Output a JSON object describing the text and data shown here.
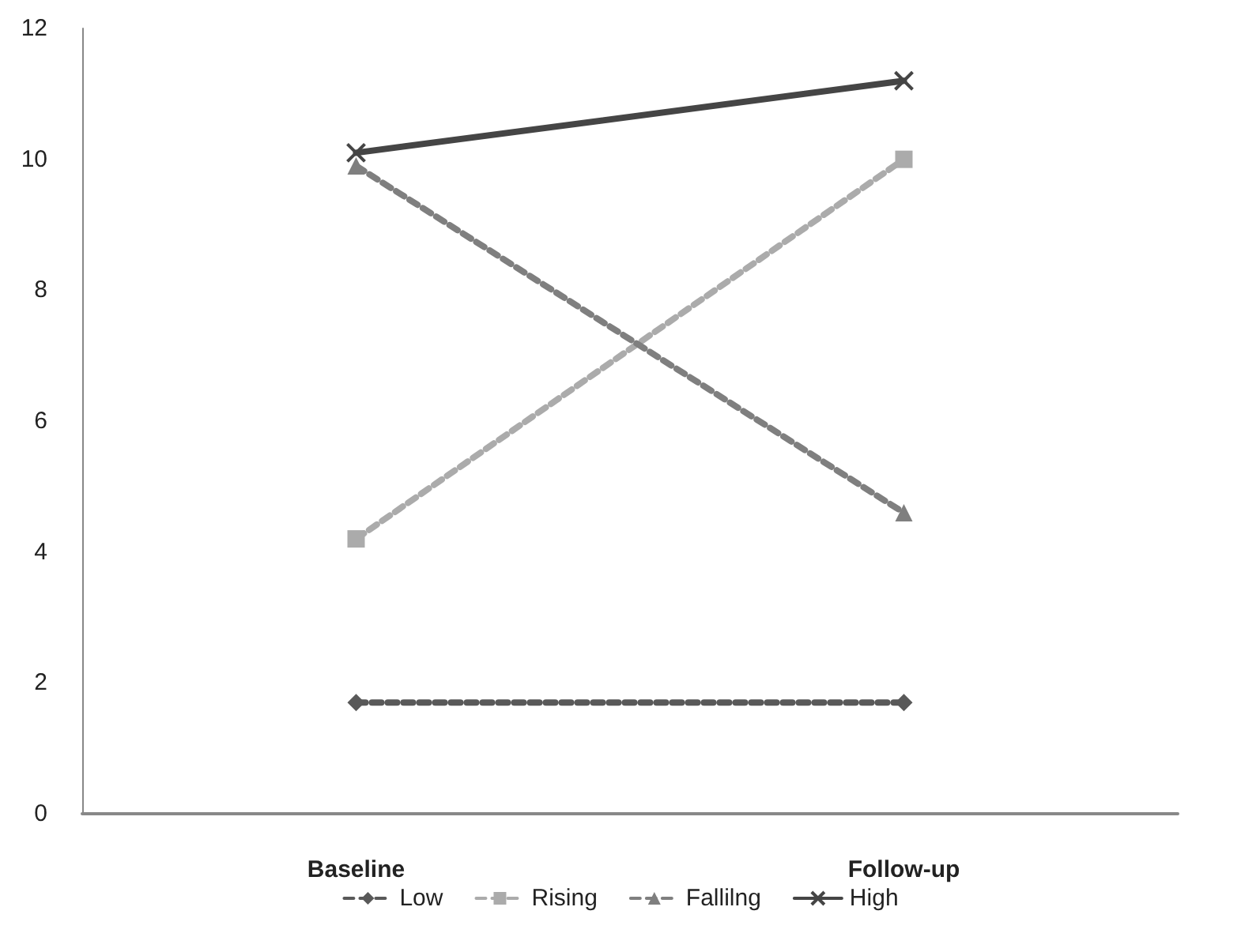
{
  "chart_data": {
    "type": "line",
    "categories": [
      "Baseline",
      "Follow-up"
    ],
    "series": [
      {
        "name": "Low",
        "color": "#595959",
        "values": [
          1.7,
          1.7
        ],
        "marker": "diamond",
        "line_style": "dashed"
      },
      {
        "name": "Rising",
        "color": "#ababab",
        "values": [
          4.2,
          10.0
        ],
        "marker": "square",
        "line_style": "dashed"
      },
      {
        "name": "Fallilng",
        "color": "#7f7f7f",
        "values": [
          9.9,
          4.6
        ],
        "marker": "triangle",
        "line_style": "dashed"
      },
      {
        "name": "High",
        "color": "#454545",
        "values": [
          10.1,
          11.2
        ],
        "marker": "cross",
        "line_style": "solid"
      }
    ],
    "ylim": [
      0,
      12
    ],
    "yticks": [
      0,
      2,
      4,
      6,
      8,
      10,
      12
    ],
    "grid": false,
    "legend": "bottom"
  }
}
